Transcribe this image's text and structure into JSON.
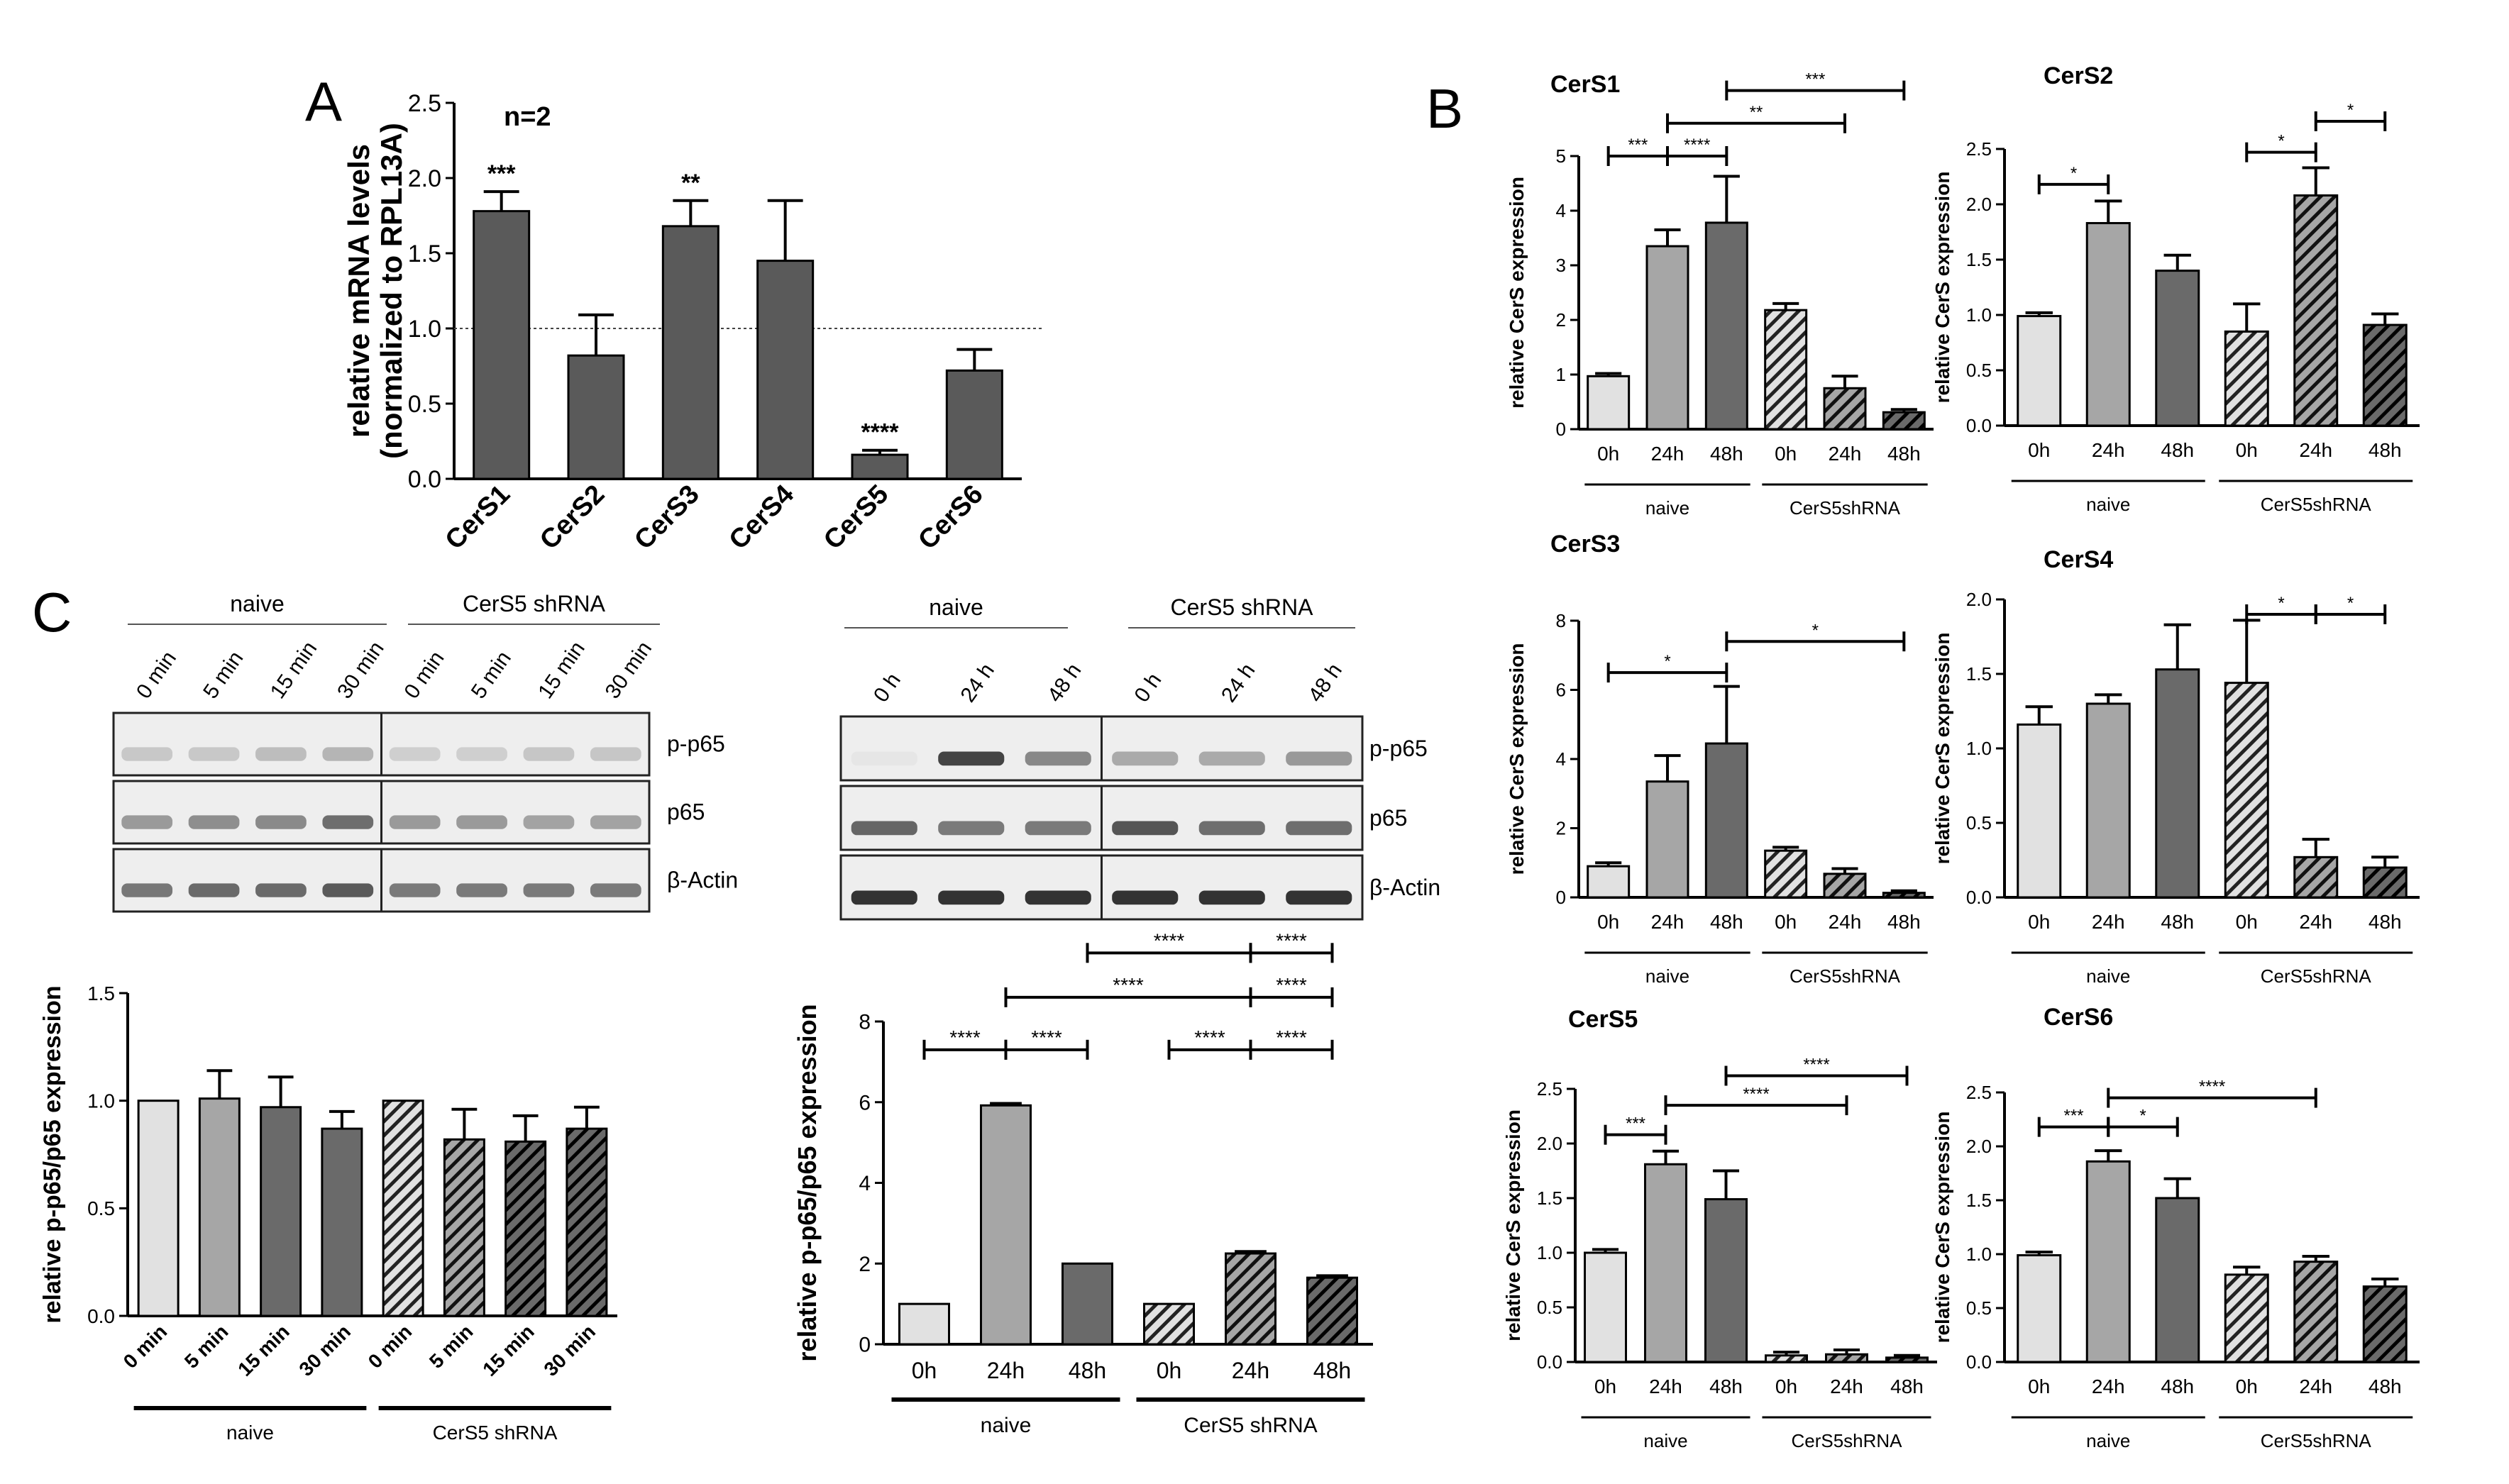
{
  "colors": {
    "c0": "#e1e1e1",
    "c24": "#a6a6a6",
    "c48": "#6a6a6a",
    "dark": "#5a5a5a",
    "axis": "#000000"
  },
  "panel_letters": {
    "a": "A",
    "b": "B",
    "c": "C"
  },
  "group_labels": {
    "naive": "naive",
    "cers5_shrna": "CerS5shRNA",
    "cers5_shrna_spaced": "CerS5 shRNA"
  },
  "blots": {
    "left": {
      "lanes": [
        "0 min",
        "5 min",
        "15 min",
        "30 min",
        "0 min",
        "5 min",
        "15 min",
        "30 min"
      ],
      "rows": [
        "p-p65",
        "p65",
        "β-Actin"
      ]
    },
    "right": {
      "lanes": [
        "0 h",
        "24 h",
        "48 h",
        "0 h",
        "24 h",
        "48 h"
      ],
      "rows": [
        "p-p65",
        "p65",
        "β-Actin"
      ]
    }
  },
  "chart_data": [
    {
      "id": "A",
      "type": "bar",
      "title": "",
      "annotation": "n=2",
      "ylabel": "relative mRNA levels (normalized to  RPL13A)",
      "ylabel_lines": [
        "relative mRNA levels",
        "(normalized to  RPL13A)"
      ],
      "categories": [
        "CerS1",
        "CerS2",
        "CerS3",
        "CerS4",
        "CerS5",
        "CerS6"
      ],
      "values": [
        1.78,
        0.82,
        1.68,
        1.45,
        0.16,
        0.72
      ],
      "errors": [
        0.13,
        0.27,
        0.17,
        0.4,
        0.03,
        0.14
      ],
      "significance": [
        "***",
        "",
        "**",
        "",
        "****",
        ""
      ],
      "ylim": [
        0,
        2.5
      ],
      "yticks": [
        "0.0",
        "0.5",
        "1.0",
        "1.5",
        "2.0",
        "2.5"
      ],
      "reference_line": 1.0
    },
    {
      "id": "CerS1",
      "type": "bar",
      "title": "CerS1",
      "ylabel": "relative CerS expression",
      "categories": [
        "0h",
        "24h",
        "48h",
        "0h",
        "24h",
        "48h"
      ],
      "groups": [
        "naive",
        "CerS5shRNA"
      ],
      "values": [
        0.97,
        3.35,
        3.78,
        2.18,
        0.75,
        0.31
      ],
      "errors": [
        0.05,
        0.3,
        0.85,
        0.12,
        0.22,
        0.05
      ],
      "ylim": [
        0,
        5
      ],
      "yticks": [
        "0",
        "1",
        "2",
        "3",
        "4",
        "5"
      ],
      "comparisons": [
        {
          "from": 0,
          "to": 1,
          "label": "***",
          "y": 5.0
        },
        {
          "from": 1,
          "to": 2,
          "label": "****",
          "y": 5.0
        },
        {
          "from": 1,
          "to": 4,
          "label": "**",
          "y": 5.6
        },
        {
          "from": 2,
          "to": 5,
          "label": "***",
          "y": 6.2
        }
      ]
    },
    {
      "id": "CerS2",
      "type": "bar",
      "title": "CerS2",
      "ylabel": "relative CerS expression",
      "categories": [
        "0h",
        "24h",
        "48h",
        "0h",
        "24h",
        "48h"
      ],
      "groups": [
        "naive",
        "CerS5shRNA"
      ],
      "values": [
        0.99,
        1.83,
        1.4,
        0.85,
        2.08,
        0.91
      ],
      "errors": [
        0.03,
        0.2,
        0.14,
        0.25,
        0.25,
        0.1
      ],
      "ylim": [
        0,
        2.5
      ],
      "yticks": [
        "0.0",
        "0.5",
        "1.0",
        "1.5",
        "2.0",
        "2.5"
      ],
      "comparisons": [
        {
          "from": 0,
          "to": 1,
          "label": "*",
          "y": 2.18
        },
        {
          "from": 3,
          "to": 4,
          "label": "*",
          "y": 2.47
        },
        {
          "from": 4,
          "to": 5,
          "label": "*",
          "y": 2.75
        }
      ]
    },
    {
      "id": "CerS3",
      "type": "bar",
      "title": "CerS3",
      "ylabel": "relative CerS expression",
      "categories": [
        "0h",
        "24h",
        "48h",
        "0h",
        "24h",
        "48h"
      ],
      "groups": [
        "naive",
        "CerS5shRNA"
      ],
      "values": [
        0.9,
        3.35,
        4.45,
        1.35,
        0.68,
        0.13
      ],
      "errors": [
        0.1,
        0.75,
        1.65,
        0.1,
        0.15,
        0.06
      ],
      "ylim": [
        0,
        8
      ],
      "yticks": [
        "0",
        "2",
        "4",
        "6",
        "8"
      ],
      "comparisons": [
        {
          "from": 0,
          "to": 2,
          "label": "*",
          "y": 6.5
        },
        {
          "from": 2,
          "to": 5,
          "label": "*",
          "y": 7.4
        }
      ]
    },
    {
      "id": "CerS4",
      "type": "bar",
      "title": "CerS4",
      "ylabel": "relative CerS expression",
      "categories": [
        "0h",
        "24h",
        "48h",
        "0h",
        "24h",
        "48h"
      ],
      "groups": [
        "naive",
        "CerS5shRNA"
      ],
      "values": [
        1.16,
        1.3,
        1.53,
        1.44,
        0.27,
        0.2
      ],
      "errors": [
        0.12,
        0.06,
        0.3,
        0.42,
        0.12,
        0.07
      ],
      "ylim": [
        0,
        2.0
      ],
      "yticks": [
        "0.0",
        "0.5",
        "1.0",
        "1.5",
        "2.0"
      ],
      "comparisons": [
        {
          "from": 3,
          "to": 4,
          "label": "*",
          "y": 1.9
        },
        {
          "from": 4,
          "to": 5,
          "label": "*",
          "y": 1.9
        }
      ]
    },
    {
      "id": "CerS5",
      "type": "bar",
      "title": "CerS5",
      "ylabel": "relative CerS expression",
      "categories": [
        "0h",
        "24h",
        "48h",
        "0h",
        "24h",
        "48h"
      ],
      "groups": [
        "naive",
        "CerS5shRNA"
      ],
      "values": [
        1.0,
        1.81,
        1.49,
        0.06,
        0.07,
        0.04
      ],
      "errors": [
        0.03,
        0.12,
        0.26,
        0.03,
        0.04,
        0.02
      ],
      "ylim": [
        0,
        2.5
      ],
      "yticks": [
        "0.0",
        "0.5",
        "1.0",
        "1.5",
        "2.0",
        "2.5"
      ],
      "comparisons": [
        {
          "from": 0,
          "to": 1,
          "label": "***",
          "y": 2.08
        },
        {
          "from": 1,
          "to": 4,
          "label": "****",
          "y": 2.35
        },
        {
          "from": 2,
          "to": 5,
          "label": "****",
          "y": 2.62
        }
      ]
    },
    {
      "id": "CerS6",
      "type": "bar",
      "title": "CerS6",
      "ylabel": "relative CerS expression",
      "categories": [
        "0h",
        "24h",
        "48h",
        "0h",
        "24h",
        "48h"
      ],
      "groups": [
        "naive",
        "CerS5shRNA"
      ],
      "values": [
        0.99,
        1.86,
        1.52,
        0.81,
        0.93,
        0.7
      ],
      "errors": [
        0.03,
        0.1,
        0.18,
        0.07,
        0.05,
        0.07
      ],
      "ylim": [
        0,
        2.5
      ],
      "yticks": [
        "0.0",
        "0.5",
        "1.0",
        "1.5",
        "2.0",
        "2.5"
      ],
      "comparisons": [
        {
          "from": 0,
          "to": 1,
          "label": "***",
          "y": 2.18
        },
        {
          "from": 1,
          "to": 2,
          "label": "*",
          "y": 2.18
        },
        {
          "from": 1,
          "to": 4,
          "label": "****",
          "y": 2.45
        }
      ]
    },
    {
      "id": "C_left",
      "type": "bar",
      "title": "",
      "ylabel": "relative p-p65/p65 expression",
      "categories": [
        "0 min",
        "5 min",
        "15 min",
        "30 min",
        "0 min",
        "5 min",
        "15 min",
        "30 min"
      ],
      "groups": [
        "naive",
        "CerS5 shRNA"
      ],
      "values": [
        1.0,
        1.01,
        0.97,
        0.87,
        1.0,
        0.82,
        0.81,
        0.87
      ],
      "errors": [
        0,
        0.13,
        0.14,
        0.08,
        0,
        0.14,
        0.12,
        0.1
      ],
      "ylim": [
        0,
        1.5
      ],
      "yticks": [
        "0.0",
        "0.5",
        "1.0",
        "1.5"
      ]
    },
    {
      "id": "C_right",
      "type": "bar",
      "title": "",
      "ylabel": "relative p-p65/p65 expression",
      "categories": [
        "0h",
        "24h",
        "48h",
        "0h",
        "24h",
        "48h"
      ],
      "groups": [
        "naive",
        "CerS5 shRNA"
      ],
      "values": [
        1.0,
        5.92,
        2.0,
        1.0,
        2.25,
        1.65
      ],
      "errors": [
        0,
        0.05,
        0,
        0,
        0.05,
        0.05
      ],
      "ylim": [
        0,
        8
      ],
      "yticks": [
        "0",
        "2",
        "4",
        "6",
        "8"
      ],
      "comparisons": [
        {
          "from": 0,
          "to": 1,
          "label": "****",
          "y": 7.3
        },
        {
          "from": 1,
          "to": 2,
          "label": "****",
          "y": 7.3
        },
        {
          "from": 1,
          "to": 4,
          "label": "****",
          "y": 8.6
        },
        {
          "from": 2,
          "to": 4,
          "label": "****",
          "y": 9.7
        },
        {
          "from": 4,
          "to": 5,
          "label": "****",
          "y": 9.7
        },
        {
          "from": 4,
          "to": 5,
          "label": "****",
          "y": 8.6
        },
        {
          "from": 3,
          "to": 4,
          "label": "****",
          "y": 7.3
        },
        {
          "from": 4,
          "to": 5,
          "label": "****",
          "y": 7.3
        }
      ]
    }
  ]
}
